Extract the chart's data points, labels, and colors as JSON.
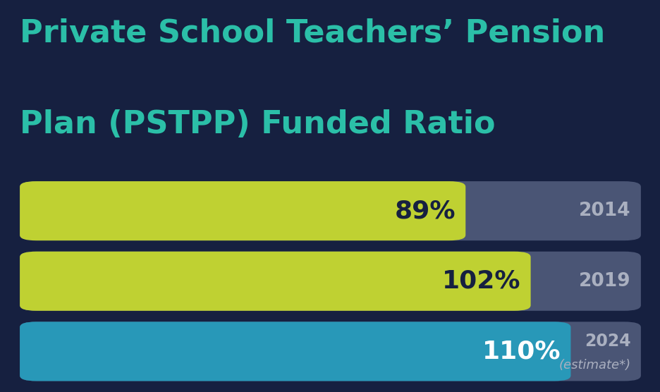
{
  "title_line1": "Private School Teachers’ Pension",
  "title_line2": "Plan (PSTPP) Funded Ratio",
  "title_color": "#2bbfa8",
  "background_color": "#162040",
  "bar_bg_color": "#4a5575",
  "bars": [
    {
      "year": "2014",
      "value": 89,
      "max_val": 124,
      "color": "#bfd132",
      "label": "89%",
      "label_color": "#162040",
      "year_text": "2014",
      "year_color": "#aab0c0",
      "estimate": false
    },
    {
      "year": "2019",
      "value": 102,
      "max_val": 124,
      "color": "#bfd132",
      "label": "102%",
      "label_color": "#162040",
      "year_text": "2019",
      "year_color": "#aab0c0",
      "estimate": false
    },
    {
      "year": "2024",
      "value": 110,
      "max_val": 124,
      "color": "#2898b8",
      "label": "110%",
      "label_color": "#ffffff",
      "year_text": "2024",
      "estimate_text": "(estimate*)",
      "year_color": "#aab0c0",
      "estimate": true
    }
  ]
}
